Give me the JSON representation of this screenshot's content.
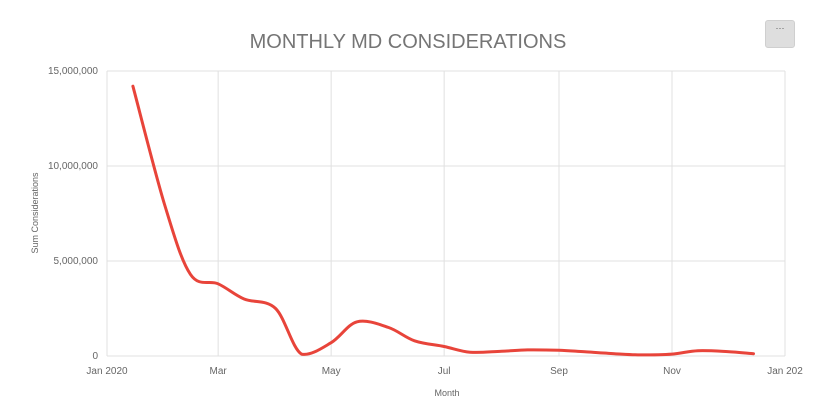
{
  "menu": {
    "label": "···"
  },
  "chart_data": {
    "type": "line",
    "title": "MONTHLY MD CONSIDERATIONS",
    "xlabel": "Month",
    "ylabel": "Sum Considerations",
    "x_tick_labels": [
      "Jan 2020",
      "Mar",
      "May",
      "Jul",
      "Sep",
      "Nov",
      "Jan 202"
    ],
    "x_ticks": [
      "2020-01-01",
      "2020-03-01",
      "2020-05-01",
      "2020-07-01",
      "2020-09-01",
      "2020-11-01",
      "2021-01-01"
    ],
    "y_tick_labels": [
      "0",
      "5,000,000",
      "10,000,000",
      "15,000,000"
    ],
    "y_ticks": [
      0,
      5000000,
      10000000,
      15000000
    ],
    "xlim": [
      "2020-01-01",
      "2021-01-01"
    ],
    "ylim": [
      0,
      15000000
    ],
    "grid": true,
    "color": "#e8443a",
    "series": [
      {
        "points": [
          {
            "x": "2020-01-15",
            "y": 14200000
          },
          {
            "x": "2020-02-01",
            "y": 8000000
          },
          {
            "x": "2020-02-15",
            "y": 4300000
          },
          {
            "x": "2020-03-01",
            "y": 3800000
          },
          {
            "x": "2020-03-15",
            "y": 3000000
          },
          {
            "x": "2020-04-01",
            "y": 2500000
          },
          {
            "x": "2020-04-15",
            "y": 100000
          },
          {
            "x": "2020-05-01",
            "y": 700000
          },
          {
            "x": "2020-05-15",
            "y": 1800000
          },
          {
            "x": "2020-06-01",
            "y": 1500000
          },
          {
            "x": "2020-06-15",
            "y": 800000
          },
          {
            "x": "2020-07-01",
            "y": 500000
          },
          {
            "x": "2020-07-15",
            "y": 200000
          },
          {
            "x": "2020-08-01",
            "y": 250000
          },
          {
            "x": "2020-08-15",
            "y": 320000
          },
          {
            "x": "2020-09-01",
            "y": 300000
          },
          {
            "x": "2020-09-15",
            "y": 220000
          },
          {
            "x": "2020-10-01",
            "y": 120000
          },
          {
            "x": "2020-10-15",
            "y": 60000
          },
          {
            "x": "2020-11-01",
            "y": 100000
          },
          {
            "x": "2020-11-15",
            "y": 280000
          },
          {
            "x": "2020-12-01",
            "y": 230000
          },
          {
            "x": "2020-12-15",
            "y": 120000
          }
        ]
      }
    ]
  }
}
